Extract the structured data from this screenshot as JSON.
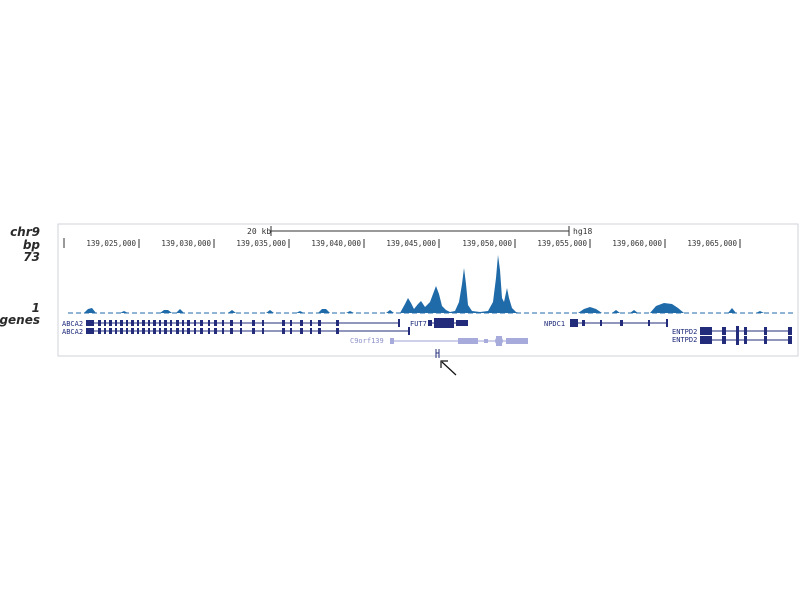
{
  "tracks": {
    "chrom_label": "chr9",
    "bp_label": "bp",
    "signal_max_label": "73",
    "signal_min_label": "1",
    "genes_label": "genes"
  },
  "scale_bar": {
    "length_label": "20 kb",
    "assembly_label": "hg18"
  },
  "coordinates": {
    "ticks": [
      "139,025,000",
      "139,030,000",
      "139,035,000",
      "139,040,000",
      "139,045,000",
      "139,050,000",
      "139,055,000",
      "139,060,000",
      "139,065,000"
    ]
  },
  "genes": [
    {
      "id": "abca2-1",
      "label": "ABCA2"
    },
    {
      "id": "abca2-2",
      "label": "ABCA2"
    },
    {
      "id": "fut7",
      "label": "FUT7"
    },
    {
      "id": "npdc1",
      "label": "NPDC1"
    },
    {
      "id": "c9orf139",
      "label": "C9orf139"
    },
    {
      "id": "entpd2-1",
      "label": "ENTPD2"
    },
    {
      "id": "entpd2-2",
      "label": "ENTPD2"
    }
  ],
  "colors": {
    "signal": "#1f6aa8",
    "gene_dark": "#232c7a",
    "gene_light": "#a7abdc"
  },
  "icons": {
    "pointer": "arrow-pointer-icon",
    "marker": "probe-marker-icon"
  }
}
